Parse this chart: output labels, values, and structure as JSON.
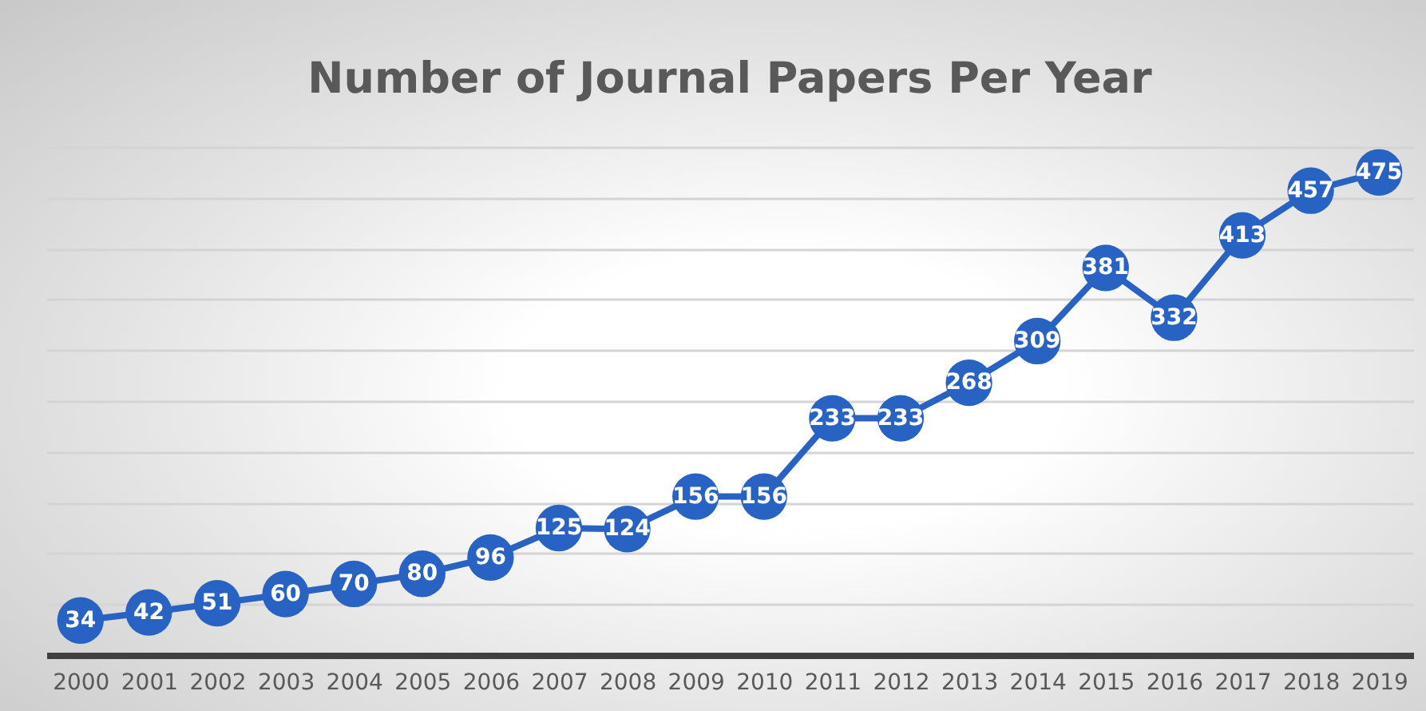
{
  "chart_data": {
    "type": "line",
    "title": "Number of Journal Papers Per Year",
    "categories": [
      "2000",
      "2001",
      "2002",
      "2003",
      "2004",
      "2005",
      "2006",
      "2007",
      "2008",
      "2009",
      "2010",
      "2011",
      "2012",
      "2013",
      "2014",
      "2015",
      "2016",
      "2017",
      "2018",
      "2019"
    ],
    "values": [
      34,
      42,
      51,
      60,
      70,
      80,
      96,
      125,
      124,
      156,
      156,
      233,
      233,
      268,
      309,
      381,
      332,
      413,
      457,
      475
    ],
    "color": "#2862c2",
    "grid": "y",
    "tick_labels": "x",
    "marker": "circle",
    "line_style": "solid",
    "data_labels": true
  }
}
